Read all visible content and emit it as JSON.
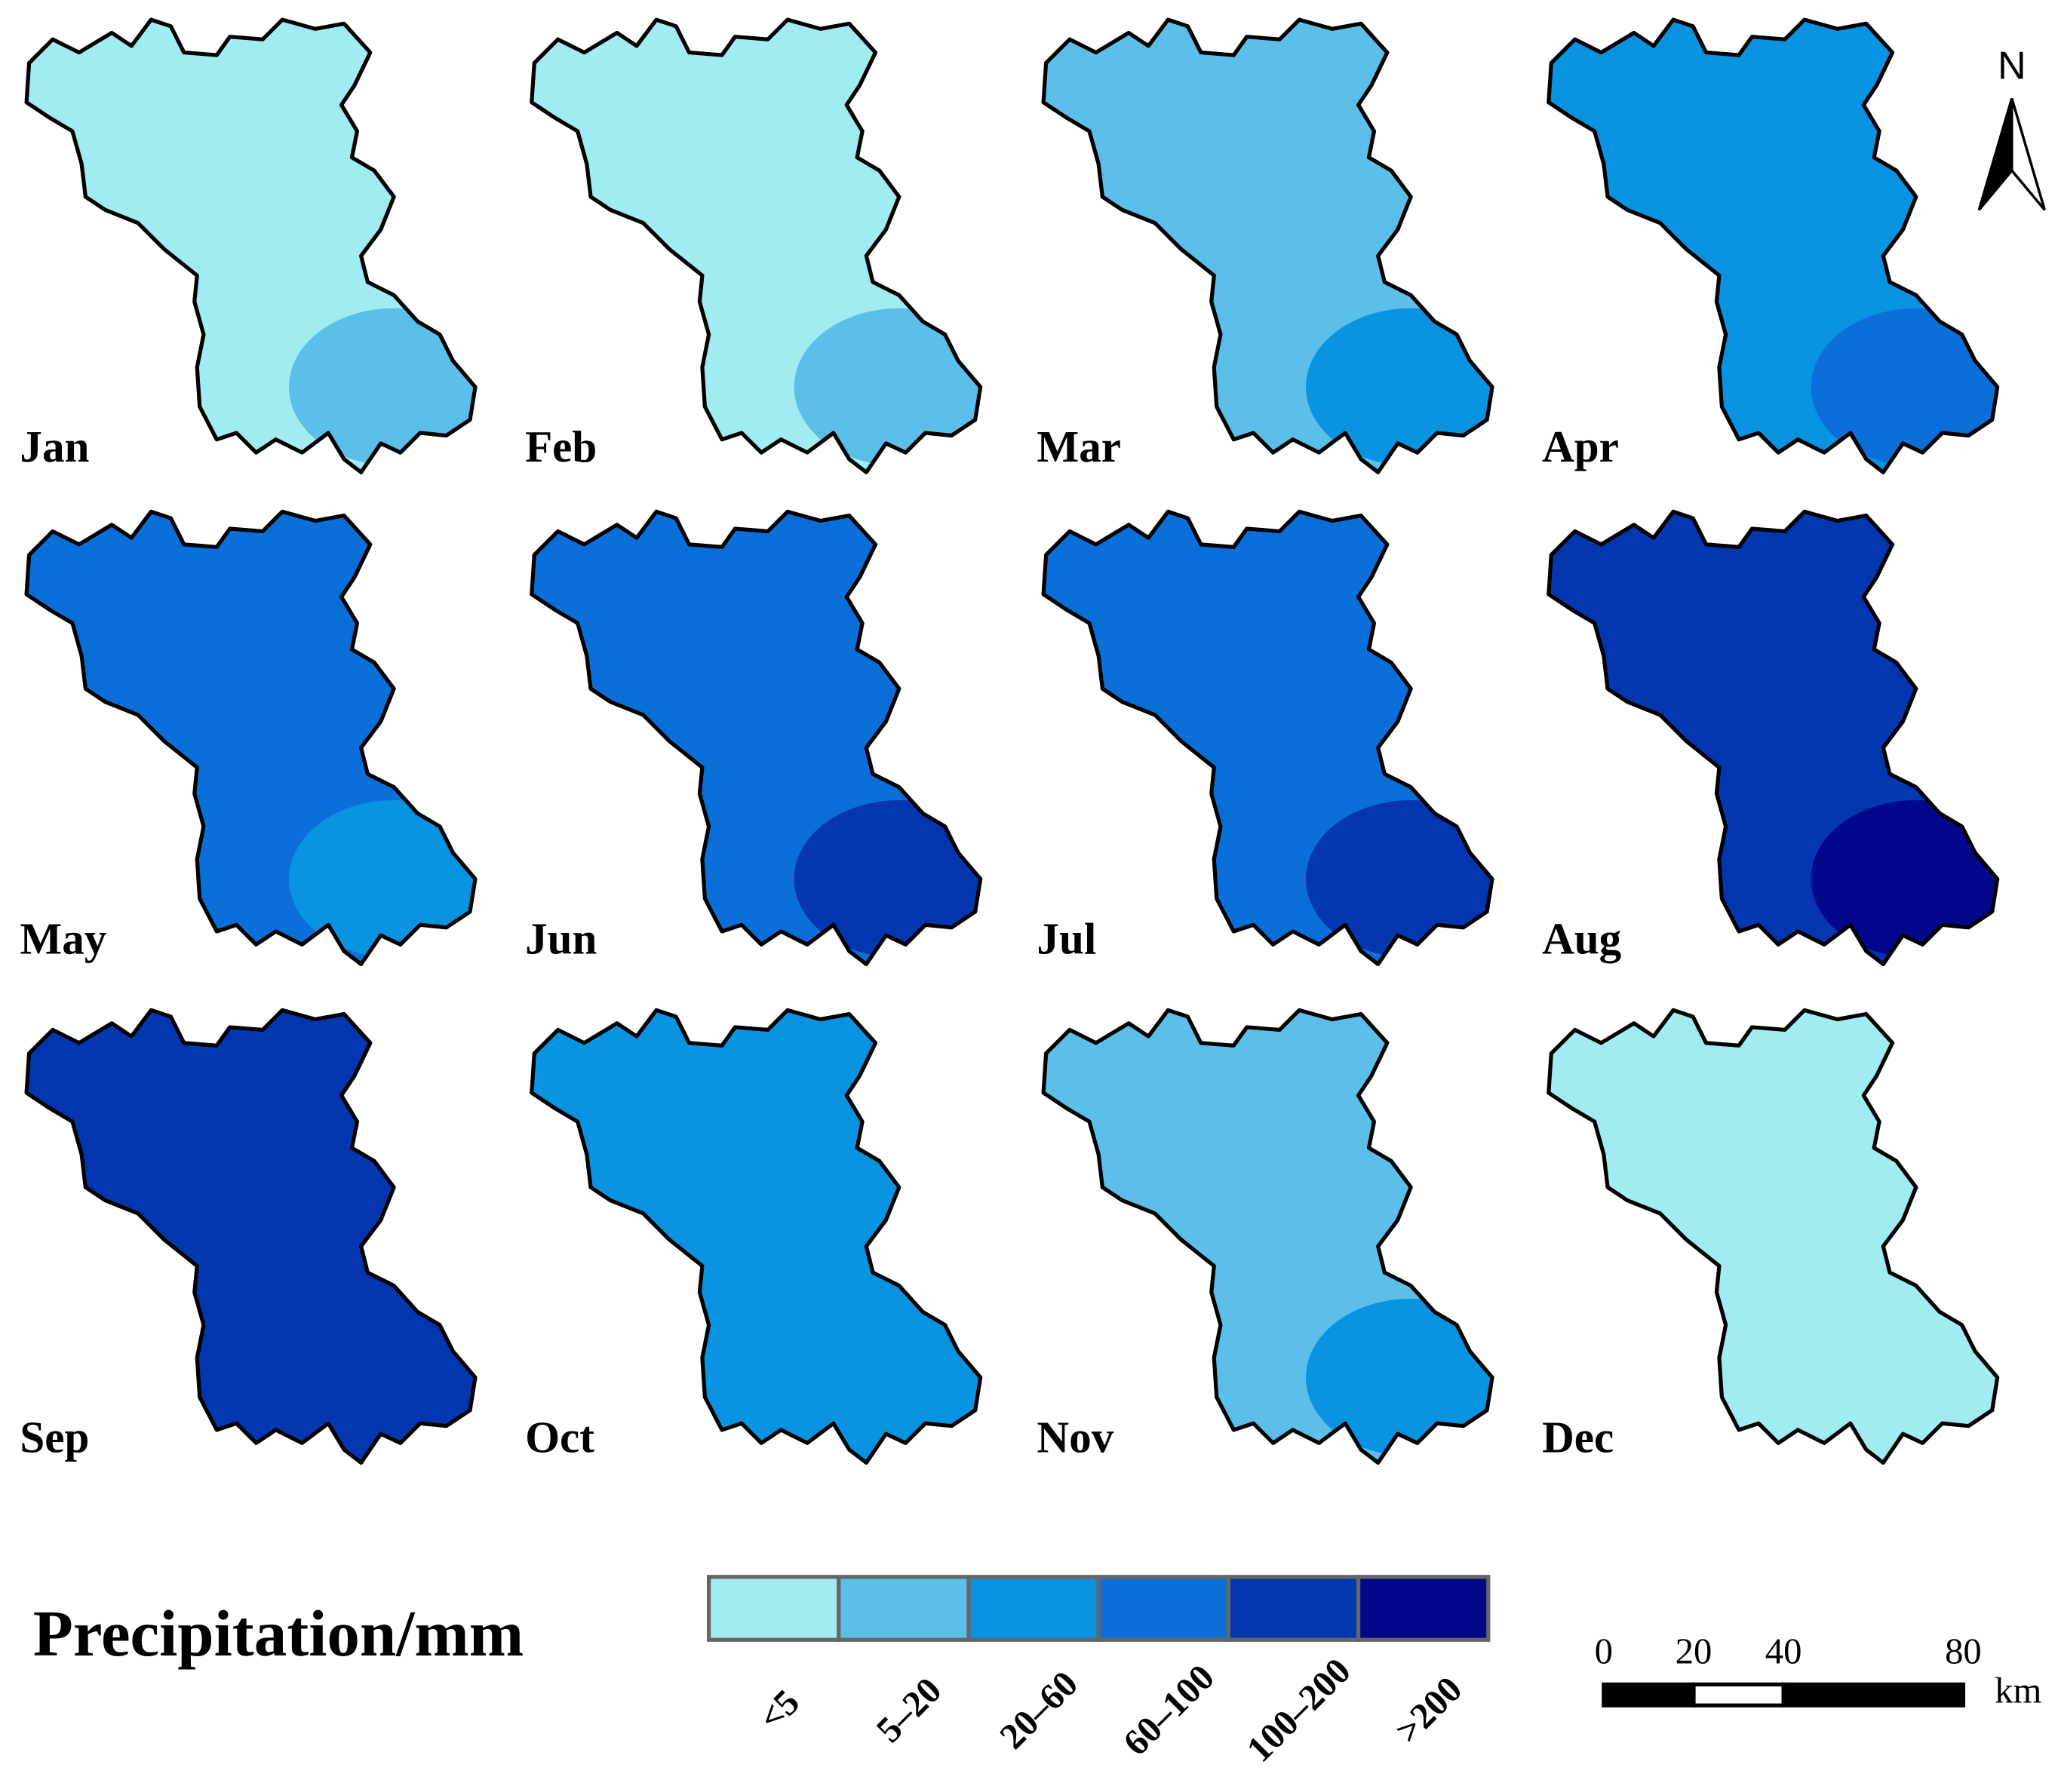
{
  "north": "N",
  "months": [
    {
      "label": "Jan",
      "color": "#a0ecf0",
      "patch": "#5bbfea"
    },
    {
      "label": "Feb",
      "color": "#a0ecf0",
      "patch": "#5bbfea"
    },
    {
      "label": "Mar",
      "color": "#5bbfea",
      "patch": "#0a93e0"
    },
    {
      "label": "Apr",
      "color": "#0a93e0",
      "patch": "#0a6fd8"
    },
    {
      "label": "May",
      "color": "#0a6fd8",
      "patch": "#0a93e0"
    },
    {
      "label": "Jun",
      "color": "#0a6fd8",
      "patch": "#0436b0"
    },
    {
      "label": "Jul",
      "color": "#0a6fd8",
      "patch": "#0436b0"
    },
    {
      "label": "Aug",
      "color": "#0436b0",
      "patch": "#03088a"
    },
    {
      "label": "Sep",
      "color": "#0436b0"
    },
    {
      "label": "Oct",
      "color": "#0a93e0"
    },
    {
      "label": "Nov",
      "color": "#5bbfea",
      "patch": "#0a93e0"
    },
    {
      "label": "Dec",
      "color": "#a0ecf0"
    }
  ],
  "legend": {
    "title": "Precipitation/mm",
    "classes": [
      {
        "label": "<5",
        "color": "#a0ecf0"
      },
      {
        "label": "5–20",
        "color": "#5bbfea"
      },
      {
        "label": "20–60",
        "color": "#0a93e0"
      },
      {
        "label": "60–100",
        "color": "#0a6fd8"
      },
      {
        "label": "100–200",
        "color": "#0436b0"
      },
      {
        "label": ">200",
        "color": "#03088a"
      }
    ]
  },
  "scale_bar": {
    "ticks": [
      0,
      20,
      40,
      80
    ],
    "unit": "km"
  }
}
